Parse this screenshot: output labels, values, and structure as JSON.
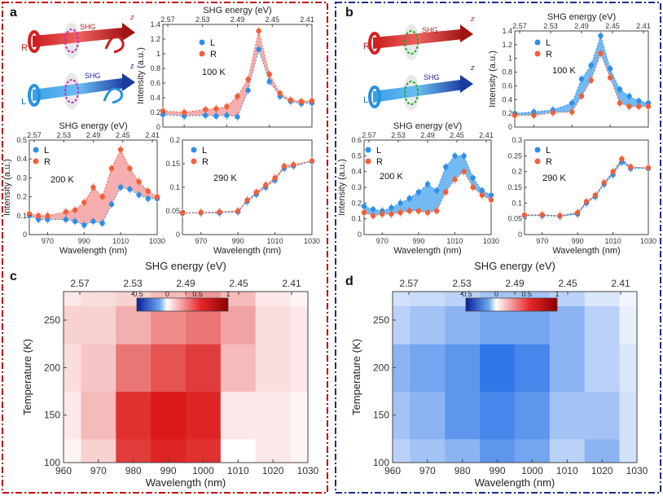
{
  "figure": {
    "panel_labels": [
      "a",
      "b",
      "c",
      "d"
    ],
    "colors": {
      "left_marker": "#2e8fe6",
      "right_marker": "#f0603a",
      "fill_a": "#f5a0a0",
      "fill_b": "#5aaef0",
      "box_a": "#c00000",
      "box_b": "#1f2a8c"
    },
    "schematics": {
      "a": [
        {
          "hand": "R",
          "shg": "SHG",
          "axis": "z",
          "beam": "red",
          "ring": "magenta"
        },
        {
          "hand": "L",
          "shg": "SHG",
          "axis": "z",
          "beam": "blue",
          "ring": "magenta"
        }
      ],
      "b": [
        {
          "hand": "R",
          "shg": "SHG",
          "axis": "z",
          "beam": "red",
          "ring": "green"
        },
        {
          "hand": "L",
          "shg": "SHG",
          "axis": "z",
          "beam": "blue",
          "ring": "green"
        }
      ]
    }
  },
  "chart_data": [
    {
      "id": "a-100K",
      "type": "line",
      "fill": "between",
      "title": "100 K",
      "xlabel": "",
      "ylabel": "Intensity (a.u.)",
      "top_label": "SHG energy (eV)",
      "top_ticks": [
        "2.57",
        "2.53",
        "2.49",
        "2.45",
        "2.41"
      ],
      "xlim": [
        960,
        1030
      ],
      "ylim": [
        0,
        1.4
      ],
      "yticks": [
        "0",
        "0.2",
        "0.4",
        "0.6",
        "0.8",
        "1",
        "1.2",
        "1.4"
      ],
      "xticks": [
        "",
        "",
        "",
        "",
        ""
      ],
      "x": [
        960,
        970,
        980,
        985,
        990,
        995,
        1000,
        1005,
        1010,
        1015,
        1020,
        1025,
        1030
      ],
      "series": [
        {
          "name": "L",
          "values": [
            0.17,
            0.15,
            0.16,
            0.15,
            0.16,
            0.14,
            0.5,
            1.06,
            0.62,
            0.42,
            0.35,
            0.32,
            0.33
          ]
        },
        {
          "name": "R",
          "values": [
            0.22,
            0.2,
            0.24,
            0.25,
            0.28,
            0.42,
            0.65,
            1.31,
            0.72,
            0.46,
            0.37,
            0.35,
            0.36
          ]
        }
      ],
      "legend": [
        "L",
        "R"
      ]
    },
    {
      "id": "a-200K",
      "type": "line",
      "fill": "between",
      "title": "200 K",
      "xlabel": "Wavelength (nm)",
      "ylabel": "Intensity (a.u.)",
      "top_label": "SHG energy (eV)",
      "top_ticks": [
        "2.57",
        "2.53",
        "2.49",
        "2.45",
        "2.41"
      ],
      "xlim": [
        960,
        1030
      ],
      "ylim": [
        0,
        0.5
      ],
      "yticks": [
        "0",
        "0.1",
        "0.2",
        "0.3",
        "0.4",
        "0.5"
      ],
      "xticks": [
        "970",
        "990",
        "1010",
        "1030"
      ],
      "x": [
        960,
        965,
        970,
        980,
        985,
        990,
        995,
        1000,
        1005,
        1010,
        1015,
        1020,
        1025,
        1030
      ],
      "series": [
        {
          "name": "L",
          "values": [
            0.1,
            0.08,
            0.08,
            0.08,
            0.07,
            0.05,
            0.07,
            0.06,
            0.16,
            0.25,
            0.24,
            0.21,
            0.19,
            0.19
          ]
        },
        {
          "name": "R",
          "values": [
            0.11,
            0.1,
            0.1,
            0.12,
            0.13,
            0.17,
            0.25,
            0.2,
            0.35,
            0.45,
            0.35,
            0.28,
            0.23,
            0.2
          ]
        }
      ],
      "legend": [
        "L",
        "R"
      ]
    },
    {
      "id": "a-290K",
      "type": "line",
      "fill": "between",
      "title": "290 K",
      "xlabel": "Wavelength (nm)",
      "ylabel": "",
      "top_label": "",
      "top_ticks": [],
      "xlim": [
        960,
        1030
      ],
      "ylim": [
        0,
        0.2
      ],
      "yticks": [
        "0",
        "0.05",
        "0.1",
        "0.15",
        "0.2"
      ],
      "xticks": [
        "970",
        "990",
        "1010",
        "1030"
      ],
      "x": [
        960,
        970,
        980,
        990,
        995,
        1000,
        1005,
        1010,
        1015,
        1020,
        1030
      ],
      "series": [
        {
          "name": "L",
          "values": [
            0.045,
            0.046,
            0.046,
            0.048,
            0.07,
            0.085,
            0.1,
            0.115,
            0.14,
            0.145,
            0.155
          ]
        },
        {
          "name": "R",
          "values": [
            0.046,
            0.047,
            0.048,
            0.05,
            0.073,
            0.09,
            0.105,
            0.12,
            0.145,
            0.148,
            0.156
          ]
        }
      ],
      "legend": [
        "L",
        "R"
      ]
    },
    {
      "id": "b-100K",
      "type": "line",
      "fill": "between",
      "title": "100 K",
      "xlabel": "",
      "ylabel": "Intensity (a.u.)",
      "top_label": "SHG energy (eV)",
      "top_ticks": [
        "2.57",
        "2.53",
        "2.49",
        "2.45",
        "2.41"
      ],
      "xlim": [
        960,
        1030
      ],
      "ylim": [
        0,
        1.4
      ],
      "yticks": [
        "0",
        "0.2",
        "0.4",
        "0.6",
        "0.8",
        "1",
        "1.2",
        "1.4"
      ],
      "xticks": [
        "",
        "",
        "",
        "",
        ""
      ],
      "x": [
        960,
        970,
        980,
        990,
        995,
        1000,
        1005,
        1010,
        1015,
        1020,
        1025,
        1030
      ],
      "series": [
        {
          "name": "L",
          "values": [
            0.2,
            0.22,
            0.25,
            0.35,
            0.7,
            0.9,
            1.33,
            0.85,
            0.55,
            0.45,
            0.38,
            0.35
          ]
        },
        {
          "name": "R",
          "values": [
            0.17,
            0.17,
            0.21,
            0.22,
            0.45,
            0.68,
            1.07,
            0.72,
            0.35,
            0.3,
            0.3,
            0.3
          ]
        }
      ],
      "legend": [
        "L",
        "R"
      ]
    },
    {
      "id": "b-200K",
      "type": "line",
      "fill": "between",
      "title": "200 K",
      "xlabel": "Wavelength (nm)",
      "ylabel": "Intensity (a.u.)",
      "top_label": "SHG energy (eV)",
      "top_ticks": [
        "2.57",
        "2.53",
        "2.49",
        "2.45",
        "2.41"
      ],
      "xlim": [
        960,
        1030
      ],
      "ylim": [
        0,
        0.6
      ],
      "yticks": [
        "0",
        "0.1",
        "0.2",
        "0.3",
        "0.4",
        "0.5",
        "0.6"
      ],
      "xticks": [
        "970",
        "990",
        "1010",
        "1030"
      ],
      "x": [
        960,
        965,
        970,
        975,
        980,
        985,
        990,
        995,
        1000,
        1005,
        1010,
        1015,
        1020,
        1025,
        1030
      ],
      "series": [
        {
          "name": "L",
          "values": [
            0.18,
            0.16,
            0.15,
            0.17,
            0.2,
            0.23,
            0.27,
            0.32,
            0.28,
            0.43,
            0.5,
            0.5,
            0.36,
            0.28,
            0.25
          ]
        },
        {
          "name": "R",
          "values": [
            0.14,
            0.12,
            0.13,
            0.13,
            0.14,
            0.15,
            0.15,
            0.14,
            0.15,
            0.27,
            0.35,
            0.4,
            0.3,
            0.25,
            0.22
          ]
        }
      ],
      "legend": [
        "L",
        "R"
      ]
    },
    {
      "id": "b-290K",
      "type": "line",
      "fill": "between",
      "title": "290 K",
      "xlabel": "Wavelength (nm)",
      "ylabel": "",
      "top_label": "",
      "top_ticks": [],
      "xlim": [
        960,
        1030
      ],
      "ylim": [
        0,
        0.3
      ],
      "yticks": [
        "0",
        "0.05",
        "0.1",
        "0.15",
        "0.2",
        "0.25",
        "0.3"
      ],
      "xticks": [
        "970",
        "990",
        "1010",
        "1030"
      ],
      "x": [
        960,
        970,
        980,
        990,
        995,
        1000,
        1005,
        1010,
        1015,
        1020,
        1030
      ],
      "series": [
        {
          "name": "L",
          "values": [
            0.06,
            0.06,
            0.058,
            0.065,
            0.1,
            0.12,
            0.16,
            0.19,
            0.23,
            0.21,
            0.21
          ]
        },
        {
          "name": "R",
          "values": [
            0.062,
            0.063,
            0.06,
            0.07,
            0.105,
            0.125,
            0.165,
            0.2,
            0.24,
            0.215,
            0.212
          ]
        }
      ],
      "legend": [
        "L",
        "R"
      ]
    },
    {
      "id": "c-map",
      "type": "heatmap",
      "top_label": "SHG energy (eV)",
      "top_ticks": [
        "2.57",
        "2.53",
        "2.49",
        "2.45",
        "2.41"
      ],
      "xlabel": "Wavelength (nm)",
      "ylabel": "Temperature (K)",
      "xlim": [
        960,
        1030
      ],
      "ylim": [
        100,
        280
      ],
      "xticks": [
        "960",
        "970",
        "980",
        "990",
        "1000",
        "1010",
        "1020",
        "1030"
      ],
      "yticks": [
        "100",
        "150",
        "200",
        "250"
      ],
      "colorbar": {
        "range": [
          -0.5,
          1
        ],
        "ticks": [
          "-0.5",
          "0",
          "0.5",
          "1"
        ]
      },
      "x": [
        960,
        970,
        980,
        990,
        1000,
        1010,
        1020,
        1030
      ],
      "y": [
        100,
        150,
        200,
        250,
        280
      ],
      "z": [
        [
          0.05,
          0.2,
          0.85,
          0.95,
          0.9,
          0.0,
          0.1,
          0.05
        ],
        [
          0.1,
          0.3,
          0.9,
          1.0,
          0.95,
          0.1,
          0.1,
          0.05
        ],
        [
          0.15,
          0.25,
          0.6,
          0.75,
          0.85,
          0.3,
          0.15,
          0.1
        ],
        [
          0.2,
          0.2,
          0.35,
          0.5,
          0.6,
          0.4,
          0.15,
          0.1
        ],
        [
          0.1,
          0.15,
          0.2,
          0.3,
          0.45,
          0.3,
          0.1,
          0.05
        ]
      ]
    },
    {
      "id": "d-map",
      "type": "heatmap",
      "top_label": "SHG energy (eV)",
      "top_ticks": [
        "2.57",
        "2.53",
        "2.49",
        "2.45",
        "2.41"
      ],
      "xlabel": "Wavelength (nm)",
      "ylabel": "Temperature (K)",
      "xlim": [
        960,
        1030
      ],
      "ylim": [
        100,
        280
      ],
      "xticks": [
        "960",
        "970",
        "980",
        "990",
        "1000",
        "1010",
        "1020",
        "1030"
      ],
      "yticks": [
        "100",
        "150",
        "200",
        "250"
      ],
      "colorbar": {
        "range": [
          -0.5,
          1
        ],
        "ticks": [
          "-0.5",
          "0",
          "0.5",
          "1"
        ]
      },
      "x": [
        960,
        970,
        980,
        990,
        1000,
        1010,
        1020,
        1030
      ],
      "y": [
        100,
        150,
        200,
        250,
        280
      ],
      "z": [
        [
          -0.15,
          -0.2,
          -0.25,
          -0.35,
          -0.3,
          -0.15,
          -0.25,
          -0.1
        ],
        [
          -0.2,
          -0.25,
          -0.35,
          -0.4,
          -0.35,
          -0.2,
          -0.2,
          -0.1
        ],
        [
          -0.25,
          -0.3,
          -0.35,
          -0.45,
          -0.4,
          -0.25,
          -0.15,
          -0.08
        ],
        [
          -0.15,
          -0.2,
          -0.25,
          -0.3,
          -0.3,
          -0.25,
          -0.15,
          -0.05
        ],
        [
          -0.1,
          -0.12,
          -0.15,
          -0.2,
          -0.2,
          -0.15,
          -0.08,
          -0.03
        ]
      ]
    }
  ]
}
